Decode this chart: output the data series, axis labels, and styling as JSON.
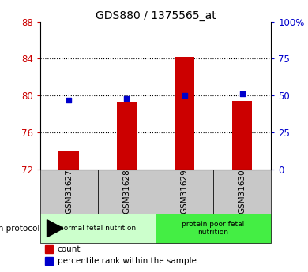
{
  "title": "GDS880 / 1375565_at",
  "samples": [
    "GSM31627",
    "GSM31628",
    "GSM31629",
    "GSM31630"
  ],
  "bar_values": [
    74.0,
    79.3,
    84.2,
    79.4
  ],
  "dot_values": [
    47,
    48,
    50,
    51
  ],
  "ylim_left": [
    72,
    88
  ],
  "ylim_right": [
    0,
    100
  ],
  "yticks_left": [
    72,
    76,
    80,
    84,
    88
  ],
  "yticks_right": [
    0,
    25,
    50,
    75,
    100
  ],
  "ytick_labels_right": [
    "0",
    "25",
    "50",
    "75",
    "100%"
  ],
  "bar_color": "#cc0000",
  "dot_color": "#0000cc",
  "groups": [
    {
      "label": "normal fetal nutrition",
      "color": "#ccffcc"
    },
    {
      "label": "protein poor fetal\nnutrition",
      "color": "#44ee44"
    }
  ],
  "group_row_label": "growth protocol",
  "legend_count_label": "count",
  "legend_pct_label": "percentile rank within the sample",
  "tick_color_left": "#cc0000",
  "tick_color_right": "#0000cc",
  "bg_xticklabels": "#c8c8c8"
}
